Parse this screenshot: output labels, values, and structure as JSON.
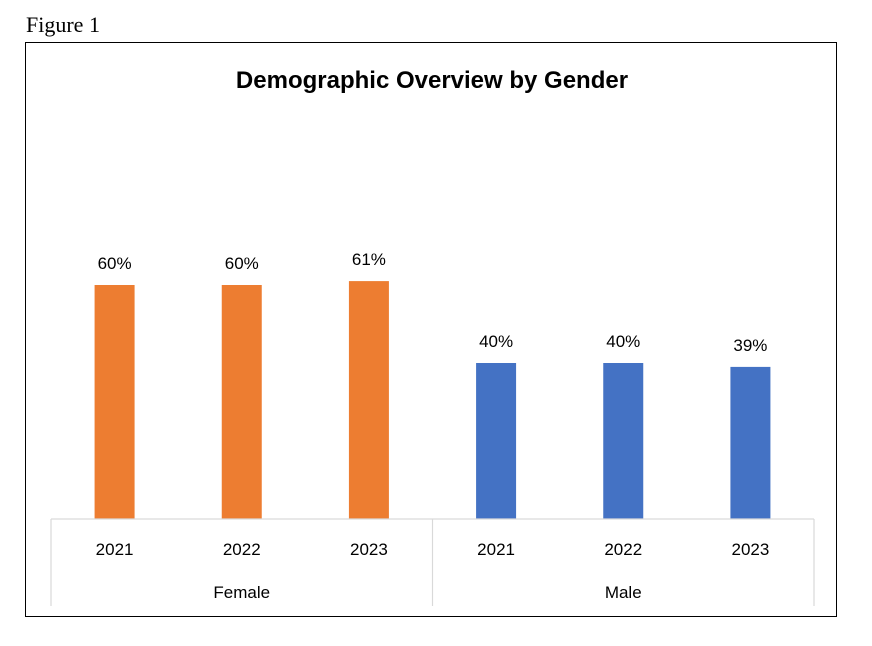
{
  "figure_label": "Figure 1",
  "chart_data": {
    "type": "bar",
    "title": "Demographic Overview by Gender",
    "xlabel": "",
    "ylabel": "",
    "ylim": [
      0,
      70
    ],
    "grid": false,
    "legend": "none",
    "groups": [
      {
        "name": "Female",
        "color": "#ED7D31",
        "categories": [
          "2021",
          "2022",
          "2023"
        ],
        "values": [
          60,
          60,
          61
        ],
        "labels": [
          "60%",
          "60%",
          "61%"
        ]
      },
      {
        "name": "Male",
        "color": "#4472C4",
        "categories": [
          "2021",
          "2022",
          "2023"
        ],
        "values": [
          40,
          40,
          39
        ],
        "labels": [
          "40%",
          "40%",
          "39%"
        ]
      }
    ]
  }
}
